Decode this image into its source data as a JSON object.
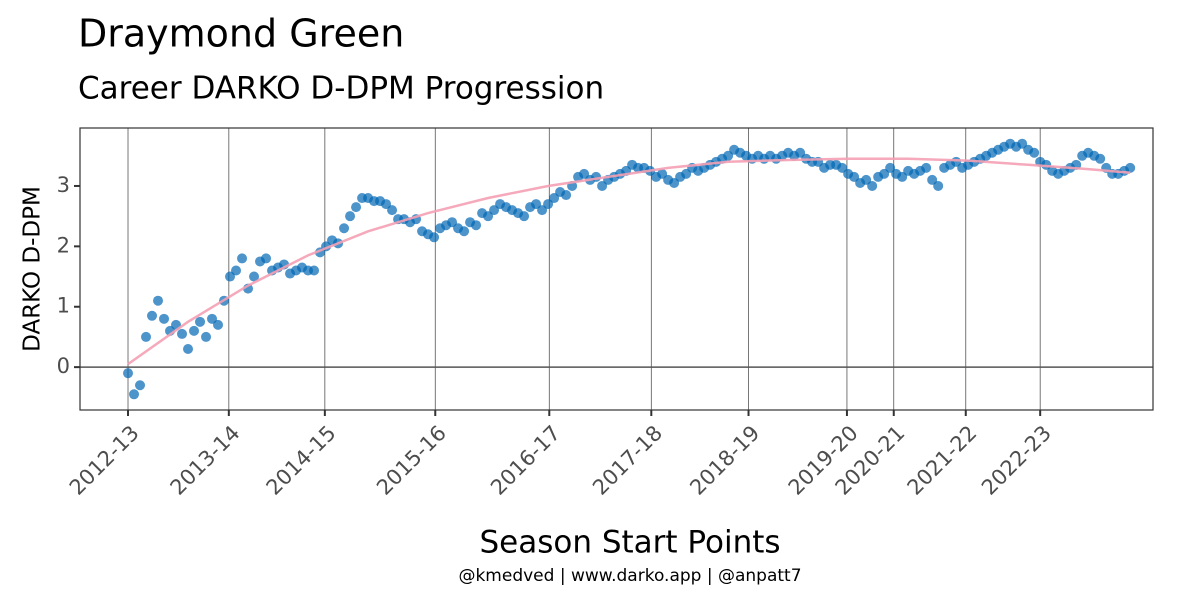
{
  "chart_data": {
    "type": "scatter",
    "title": "Draymond Green",
    "subtitle": "Career DARKO D-DPM Progression",
    "x_label": "Season Start Points",
    "y_label": "DARKO D-DPM",
    "caption": "@kmedved | www.darko.app | @anpatt7",
    "color": "#0066b3",
    "grid": true,
    "xlim": [
      -40,
      854
    ],
    "ylim": [
      -0.71,
      3.96
    ],
    "yticks": [
      0,
      1,
      2,
      3
    ],
    "xticks": [
      {
        "value": 0,
        "label": "2012-13"
      },
      {
        "value": 84,
        "label": "2013-14"
      },
      {
        "value": 164,
        "label": "2014-15"
      },
      {
        "value": 256,
        "label": "2015-16"
      },
      {
        "value": 351,
        "label": "2016-17"
      },
      {
        "value": 436,
        "label": "2017-18"
      },
      {
        "value": 517,
        "label": "2018-19"
      },
      {
        "value": 599,
        "label": "2019-20"
      },
      {
        "value": 638,
        "label": "2020-21"
      },
      {
        "value": 698,
        "label": "2021-22"
      },
      {
        "value": 760,
        "label": "2022-23"
      }
    ],
    "x": [
      0,
      5,
      10,
      15,
      20,
      25,
      30,
      35,
      40,
      45,
      50,
      55,
      60,
      65,
      70,
      75,
      80,
      85,
      90,
      95,
      100,
      105,
      110,
      115,
      120,
      125,
      130,
      135,
      140,
      145,
      150,
      155,
      160,
      165,
      170,
      175,
      180,
      185,
      190,
      195,
      200,
      205,
      210,
      215,
      220,
      225,
      230,
      235,
      240,
      245,
      250,
      255,
      260,
      265,
      270,
      275,
      280,
      285,
      290,
      295,
      300,
      305,
      310,
      315,
      320,
      325,
      330,
      335,
      340,
      345,
      350,
      355,
      360,
      365,
      370,
      375,
      380,
      385,
      390,
      395,
      400,
      405,
      410,
      415,
      420,
      425,
      430,
      435,
      440,
      445,
      450,
      455,
      460,
      465,
      470,
      475,
      480,
      485,
      490,
      495,
      500,
      505,
      510,
      515,
      520,
      525,
      530,
      535,
      540,
      545,
      550,
      555,
      560,
      565,
      570,
      575,
      580,
      585,
      590,
      595,
      600,
      605,
      610,
      615,
      620,
      625,
      630,
      635,
      640,
      645,
      650,
      655,
      660,
      665,
      670,
      675,
      680,
      685,
      690,
      695,
      700,
      705,
      710,
      715,
      720,
      725,
      730,
      735,
      740,
      745,
      750,
      755,
      760,
      765,
      770,
      775,
      780,
      785,
      790,
      795,
      800,
      805,
      810,
      815,
      820,
      825,
      830,
      835
    ],
    "values": [
      -0.1,
      -0.45,
      -0.3,
      0.5,
      0.85,
      1.1,
      0.8,
      0.6,
      0.7,
      0.55,
      0.3,
      0.6,
      0.75,
      0.5,
      0.8,
      0.7,
      1.1,
      1.5,
      1.6,
      1.8,
      1.3,
      1.5,
      1.75,
      1.8,
      1.6,
      1.65,
      1.7,
      1.55,
      1.6,
      1.65,
      1.6,
      1.6,
      1.9,
      2.0,
      2.1,
      2.05,
      2.3,
      2.5,
      2.65,
      2.8,
      2.8,
      2.75,
      2.75,
      2.7,
      2.6,
      2.45,
      2.45,
      2.4,
      2.45,
      2.25,
      2.2,
      2.15,
      2.3,
      2.35,
      2.4,
      2.3,
      2.25,
      2.4,
      2.35,
      2.55,
      2.5,
      2.6,
      2.7,
      2.65,
      2.6,
      2.55,
      2.5,
      2.65,
      2.7,
      2.6,
      2.7,
      2.8,
      2.9,
      2.85,
      3.0,
      3.15,
      3.2,
      3.1,
      3.15,
      3.0,
      3.1,
      3.15,
      3.2,
      3.25,
      3.35,
      3.3,
      3.3,
      3.25,
      3.15,
      3.2,
      3.1,
      3.05,
      3.15,
      3.2,
      3.3,
      3.25,
      3.3,
      3.35,
      3.4,
      3.45,
      3.5,
      3.6,
      3.55,
      3.5,
      3.45,
      3.5,
      3.45,
      3.5,
      3.45,
      3.5,
      3.55,
      3.5,
      3.55,
      3.45,
      3.4,
      3.4,
      3.3,
      3.35,
      3.35,
      3.3,
      3.2,
      3.15,
      3.05,
      3.1,
      3.0,
      3.15,
      3.2,
      3.3,
      3.2,
      3.15,
      3.25,
      3.2,
      3.25,
      3.3,
      3.1,
      3.0,
      3.3,
      3.35,
      3.4,
      3.3,
      3.35,
      3.4,
      3.45,
      3.5,
      3.55,
      3.6,
      3.65,
      3.7,
      3.65,
      3.7,
      3.6,
      3.55,
      3.4,
      3.35,
      3.25,
      3.2,
      3.25,
      3.3,
      3.35,
      3.5,
      3.55,
      3.5,
      3.45,
      3.3,
      3.2,
      3.2,
      3.25,
      3.3
    ],
    "trend": {
      "color": "#f4a0b4",
      "x": [
        0,
        50,
        100,
        150,
        200,
        250,
        300,
        350,
        400,
        450,
        500,
        550,
        600,
        650,
        700,
        750,
        800,
        835
      ],
      "values": [
        0.05,
        0.75,
        1.35,
        1.85,
        2.25,
        2.55,
        2.8,
        3.0,
        3.15,
        3.3,
        3.4,
        3.43,
        3.45,
        3.45,
        3.42,
        3.35,
        3.28,
        3.22
      ]
    }
  }
}
